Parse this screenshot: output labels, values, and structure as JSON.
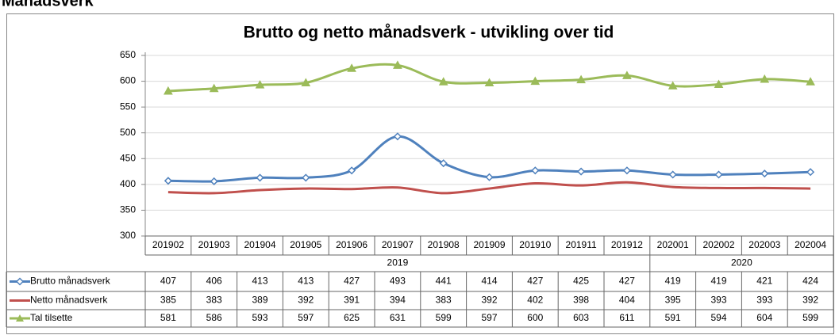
{
  "page_heading": "Månadsverk",
  "chart_data": {
    "type": "line",
    "title": "Brutto og netto månadsverk - utvikling over tid",
    "categories": [
      "201902",
      "201903",
      "201904",
      "201905",
      "201906",
      "201907",
      "201908",
      "201909",
      "201910",
      "201911",
      "201912",
      "202001",
      "202002",
      "202003",
      "202004"
    ],
    "category_groups": [
      "2019",
      "2019",
      "2019",
      "2019",
      "2019",
      "2019",
      "2019",
      "2019",
      "2019",
      "2019",
      "2019",
      "2020",
      "2020",
      "2020",
      "2020"
    ],
    "series": [
      {
        "name": "Brutto månadsverk",
        "color": "#4f81bd",
        "marker": "diamond",
        "values": [
          407,
          406,
          413,
          413,
          427,
          493,
          441,
          414,
          427,
          425,
          427,
          419,
          419,
          421,
          424
        ]
      },
      {
        "name": "Netto månadsverk",
        "color": "#c0504d",
        "marker": "none",
        "values": [
          385,
          383,
          389,
          392,
          391,
          394,
          383,
          392,
          402,
          398,
          404,
          395,
          393,
          393,
          392
        ]
      },
      {
        "name": "Tal tilsette",
        "color": "#9bbb59",
        "marker": "triangle",
        "values": [
          581,
          586,
          593,
          597,
          625,
          631,
          599,
          597,
          600,
          603,
          611,
          591,
          594,
          604,
          599
        ]
      }
    ],
    "ylim": [
      300,
      650
    ],
    "yticks": [
      300,
      350,
      400,
      450,
      500,
      550,
      600,
      650
    ],
    "grid": true,
    "data_table": true
  }
}
